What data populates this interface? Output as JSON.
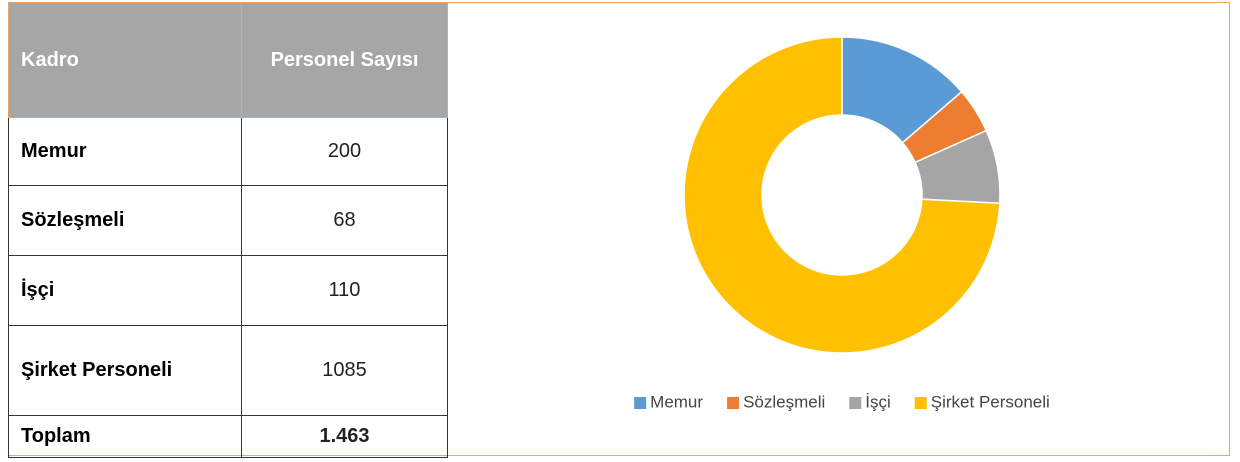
{
  "table": {
    "header": [
      "Kadro",
      "Personel Sayısı"
    ],
    "rows": [
      [
        "Memur",
        "200"
      ],
      [
        "Sözleşmeli",
        "68"
      ],
      [
        "İşçi",
        "110"
      ],
      [
        "Şirket Personeli",
        "1085"
      ],
      [
        "Toplam",
        "1.463"
      ]
    ]
  },
  "chart_data": {
    "type": "donut",
    "categories": [
      "Memur",
      "Sözleşmeli",
      "İşçi",
      "Şirket Personeli"
    ],
    "values": [
      200,
      68,
      110,
      1085
    ],
    "colors": [
      "#5b9bd5",
      "#ed7d31",
      "#a5a5a5",
      "#ffc000"
    ],
    "legend": "bottom"
  }
}
